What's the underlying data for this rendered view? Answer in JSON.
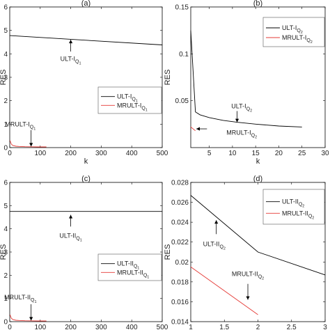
{
  "colors": {
    "black_series": "#000000",
    "red_series": "#e53935"
  },
  "chart_data": [
    {
      "type": "line",
      "title": "(a)",
      "xlabel": "k",
      "ylabel": "RES",
      "xlim": [
        0,
        500
      ],
      "ylim": [
        0,
        6
      ],
      "xticks": [
        0,
        100,
        200,
        300,
        400,
        500
      ],
      "xtick_labels": [
        "0",
        "100",
        "200",
        "300",
        "400",
        "500"
      ],
      "yticks": [
        0,
        1,
        2,
        3,
        4,
        5,
        6
      ],
      "ytick_labels": [
        "0",
        "1",
        "2",
        "3",
        "4",
        "5",
        "6"
      ],
      "legend_placement": "right",
      "series": [
        {
          "name": "ULT-I",
          "sub": "Q",
          "subsub": "1",
          "color": "#000000",
          "x": [
            0,
            500
          ],
          "y": [
            4.78,
            4.38
          ]
        },
        {
          "name": "MRULT-I",
          "sub": "Q",
          "subsub": "1",
          "color": "#e53935",
          "x": [
            1,
            5,
            10,
            20,
            30,
            50,
            70,
            90,
            110,
            120
          ],
          "y": [
            0.3,
            0.15,
            0.09,
            0.06,
            0.05,
            0.04,
            0.035,
            0.03,
            0.03,
            0.03
          ]
        }
      ],
      "annotations": [
        {
          "text": "ULT-I",
          "sub": "Q",
          "subsub": "1",
          "arrow_to": [
            200,
            4.6
          ],
          "arrow_from": [
            200,
            4.1
          ],
          "text_at": [
            200,
            3.78
          ]
        },
        {
          "text": "MRULT-I",
          "sub": "Q",
          "subsub": "1",
          "arrow_to": [
            70,
            0.05
          ],
          "arrow_from": [
            70,
            0.75
          ],
          "text_at": [
            35,
            1.0
          ]
        }
      ]
    },
    {
      "type": "line",
      "title": "(b)",
      "xlabel": "k",
      "ylabel": "RES",
      "xlim": [
        1,
        30
      ],
      "ylim": [
        0,
        0.15
      ],
      "xticks": [
        5,
        10,
        15,
        20,
        25,
        30
      ],
      "xtick_labels": [
        "5",
        "10",
        "15",
        "20",
        "25",
        "30"
      ],
      "yticks": [
        0.05,
        0.1,
        0.15
      ],
      "ytick_labels": [
        "0.05",
        "0.1",
        "0.15"
      ],
      "legend_placement": "top-right",
      "series": [
        {
          "name": "ULT-I",
          "sub": "Q",
          "subsub": "2",
          "color": "#000000",
          "x": [
            1,
            2,
            3,
            5,
            8,
            11,
            15,
            20,
            25
          ],
          "y": [
            0.125,
            0.038,
            0.035,
            0.032,
            0.029,
            0.027,
            0.025,
            0.023,
            0.022
          ]
        },
        {
          "name": "MRULT-I",
          "sub": "Q",
          "subsub": "2",
          "color": "#e53935",
          "x": [
            1,
            2
          ],
          "y": [
            0.022,
            0.018
          ]
        }
      ],
      "annotations": [
        {
          "text": "ULT-I",
          "sub": "Q",
          "subsub": "2",
          "arrow_to": [
            11,
            0.027
          ],
          "arrow_from": [
            11,
            0.039
          ],
          "text_at": [
            12,
            0.044
          ]
        },
        {
          "text": "MRULT-I",
          "sub": "Q",
          "subsub": "2",
          "arrow_to": [
            2.2,
            0.02
          ],
          "arrow_from": [
            4.5,
            0.02
          ],
          "text_at": [
            12,
            0.016
          ]
        }
      ]
    },
    {
      "type": "line",
      "title": "(c)",
      "xlabel": "k",
      "ylabel": "RES",
      "xlim": [
        0,
        500
      ],
      "ylim": [
        0,
        6
      ],
      "xticks": [
        0,
        100,
        200,
        300,
        400,
        500
      ],
      "xtick_labels": [
        "0",
        "100",
        "200",
        "300",
        "400",
        "500"
      ],
      "yticks": [
        0,
        1,
        2,
        3,
        4,
        5,
        6
      ],
      "ytick_labels": [
        "0",
        "1",
        "2",
        "3",
        "4",
        "5",
        "6"
      ],
      "legend_placement": "right",
      "series": [
        {
          "name": "ULT-II",
          "sub": "Q",
          "subsub": "1",
          "color": "#000000",
          "x": [
            0,
            500
          ],
          "y": [
            4.75,
            4.75
          ]
        },
        {
          "name": "MRULT-II",
          "sub": "Q",
          "subsub": "1",
          "color": "#e53935",
          "x": [
            1,
            5,
            10,
            20,
            30,
            50,
            70,
            90,
            110,
            120
          ],
          "y": [
            0.3,
            0.15,
            0.09,
            0.06,
            0.05,
            0.04,
            0.035,
            0.03,
            0.03,
            0.03
          ]
        }
      ],
      "annotations": [
        {
          "text": "ULT-II",
          "sub": "Q",
          "subsub": "1",
          "arrow_to": [
            200,
            4.6
          ],
          "arrow_from": [
            200,
            4.1
          ],
          "text_at": [
            200,
            3.7
          ]
        },
        {
          "text": "MRULT-II",
          "sub": "Q",
          "subsub": "1",
          "arrow_to": [
            70,
            0.05
          ],
          "arrow_from": [
            70,
            0.75
          ],
          "text_at": [
            35,
            1.05
          ]
        }
      ]
    },
    {
      "type": "line",
      "title": "(d)",
      "xlabel": "k",
      "ylabel": "RES",
      "xlim": [
        1,
        3
      ],
      "ylim": [
        0.014,
        0.028
      ],
      "xticks": [
        1,
        1.5,
        2,
        2.5,
        3
      ],
      "xtick_labels": [
        "1",
        "1.5",
        "2",
        "2.5",
        "3"
      ],
      "yticks": [
        0.014,
        0.016,
        0.018,
        0.02,
        0.022,
        0.024,
        0.026,
        0.028
      ],
      "ytick_labels": [
        "0.014",
        "0.016",
        "0.018",
        "0.02",
        "0.022",
        "0.024",
        "0.026",
        "0.028"
      ],
      "legend_placement": "top-right",
      "series": [
        {
          "name": "ULT-II",
          "sub": "Q",
          "subsub": "2",
          "color": "#000000",
          "x": [
            1,
            2,
            3
          ],
          "y": [
            0.0267,
            0.021,
            0.0187
          ]
        },
        {
          "name": "MRULT-II",
          "sub": "Q",
          "subsub": "2",
          "color": "#e53935",
          "x": [
            1,
            2
          ],
          "y": [
            0.0195,
            0.0147
          ]
        }
      ],
      "annotations": [
        {
          "text": "ULT-II",
          "sub": "Q",
          "subsub": "2",
          "arrow_to": [
            1.38,
            0.0242
          ],
          "arrow_from": [
            1.38,
            0.0228
          ],
          "text_at": [
            1.35,
            0.0218
          ]
        },
        {
          "text": "MRULT-II",
          "sub": "Q",
          "subsub": "2",
          "arrow_to": [
            1.85,
            0.0162
          ],
          "arrow_from": [
            1.85,
            0.0178
          ],
          "text_at": [
            1.85,
            0.0188
          ]
        }
      ]
    }
  ]
}
